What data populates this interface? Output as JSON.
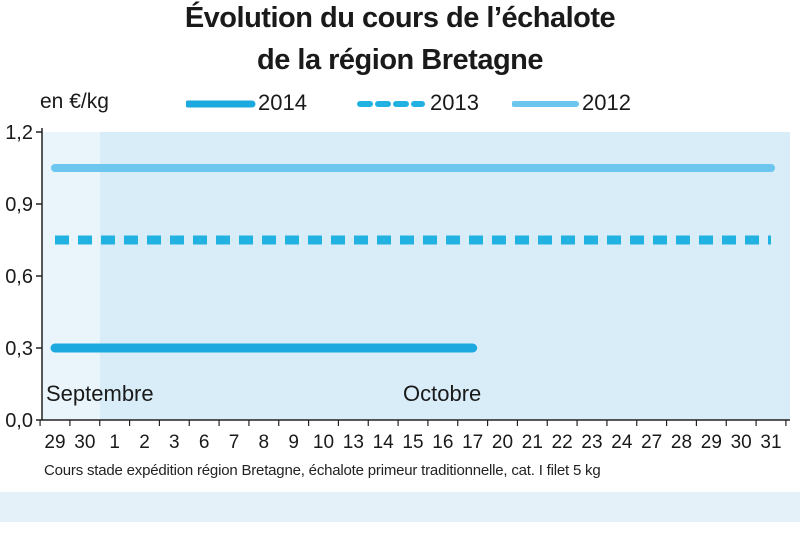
{
  "chart_data": {
    "type": "line",
    "title": "Évolution du cours de l’échalote",
    "subtitle": "de la région Bretagne",
    "ylabel": "en €/kg",
    "ylim": [
      0,
      1.2
    ],
    "y_ticks": [
      "0,0",
      "0,3",
      "0,6",
      "0,9",
      "1,2"
    ],
    "x_ticks": [
      "29",
      "30",
      "1",
      "2",
      "3",
      "6",
      "7",
      "8",
      "9",
      "10",
      "13",
      "14",
      "15",
      "16",
      "17",
      "20",
      "21",
      "22",
      "23",
      "24",
      "27",
      "28",
      "29",
      "30",
      "31"
    ],
    "month_labels": [
      "Septembre",
      "Octobre"
    ],
    "series": [
      {
        "name": "2014",
        "style": "solid-thick",
        "color": "#1ba9e0",
        "y": 0.3,
        "x_start": "29",
        "x_end": "17"
      },
      {
        "name": "2013",
        "style": "dashed",
        "color": "#22b2e2",
        "y": 0.75,
        "x_start": "29",
        "x_end": "31"
      },
      {
        "name": "2012",
        "style": "solid-light",
        "color": "#6cc6ee",
        "y": 1.05,
        "x_start": "29",
        "x_end": "31"
      }
    ],
    "caption": "Cours stade expédition région Bretagne, échalote primeur traditionnelle, cat. I filet 5 kg",
    "grid": false,
    "legend_position": "top"
  }
}
